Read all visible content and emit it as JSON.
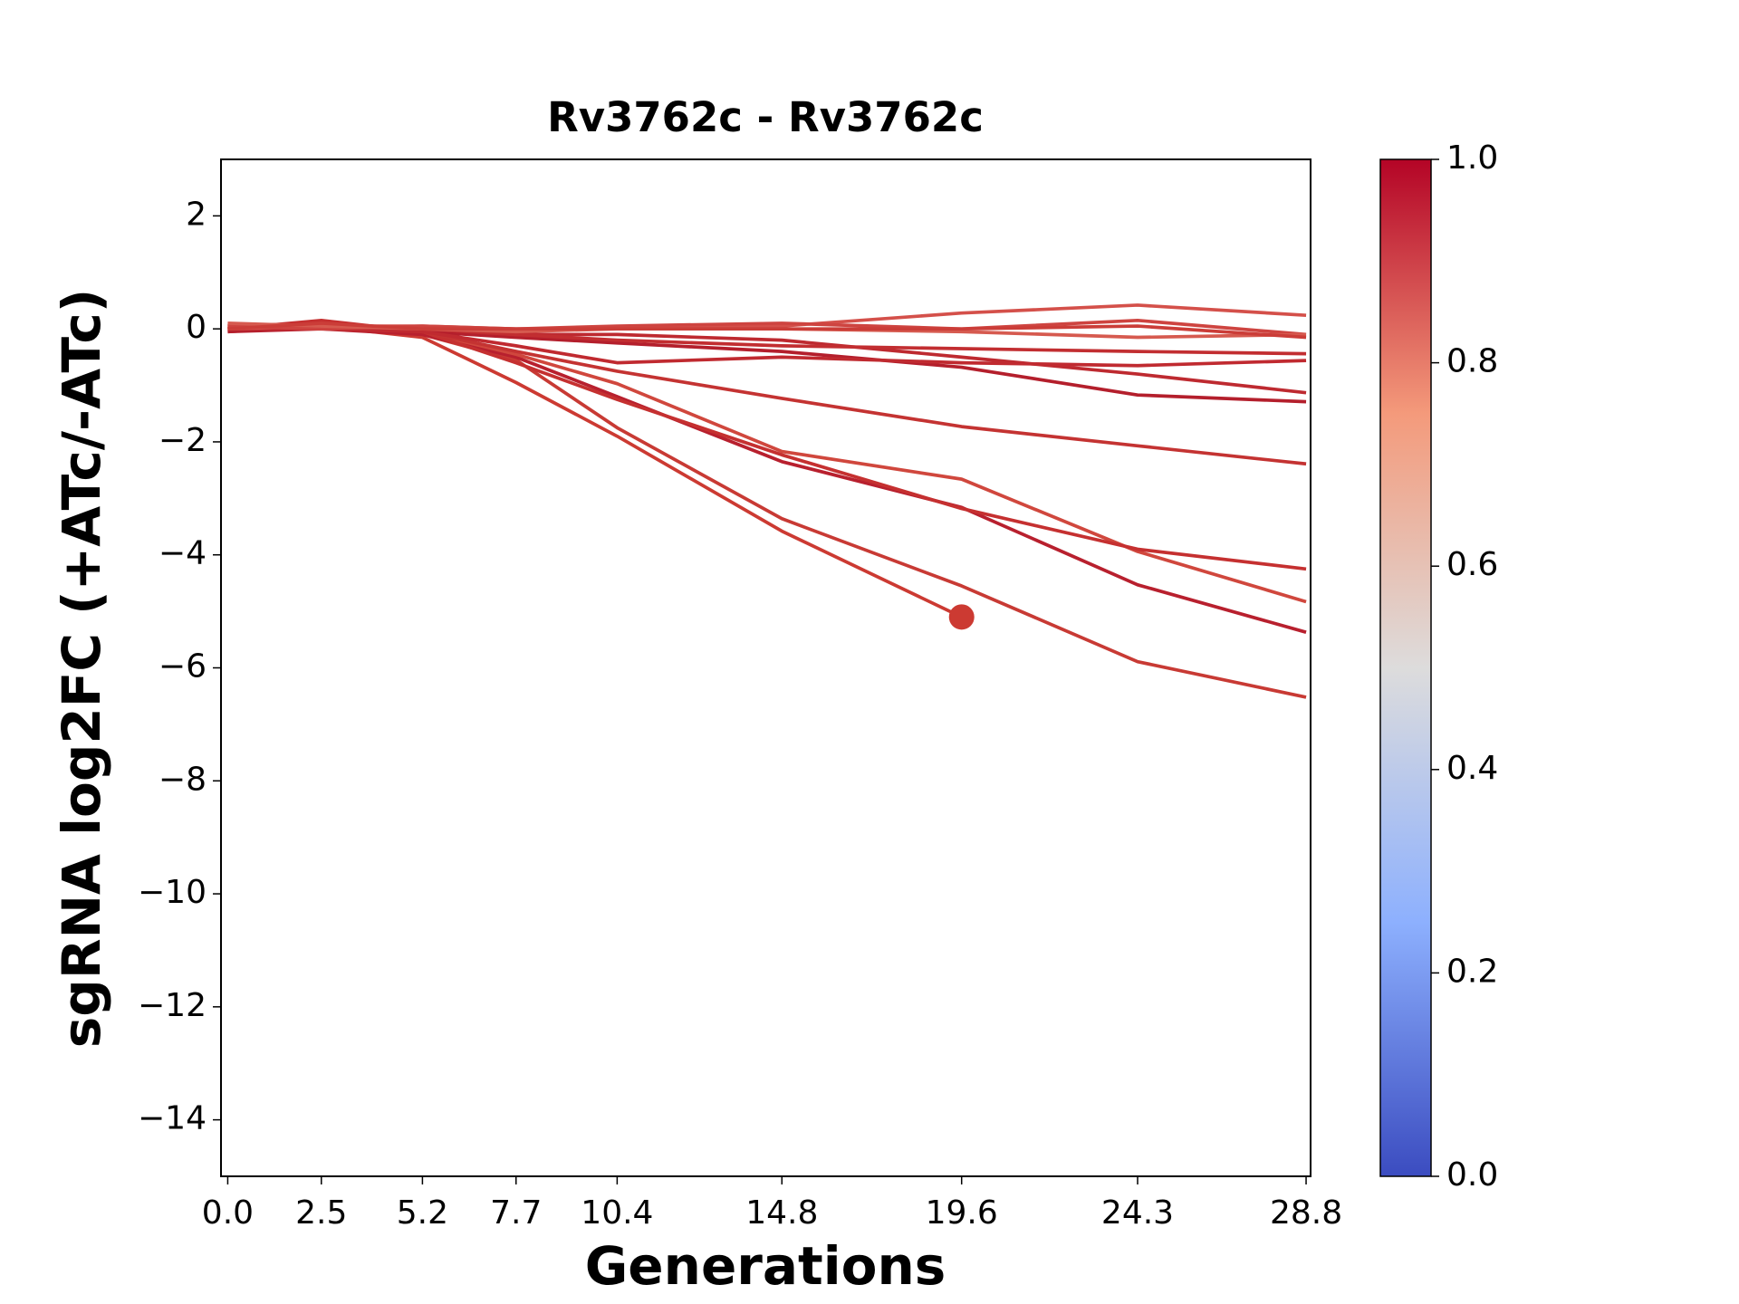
{
  "chart_data": {
    "type": "line",
    "title": "Rv3762c - Rv3762c",
    "xlabel": "Generations",
    "ylabel": "sgRNA log2FC (+ATc/-ATc)",
    "x": [
      0,
      2.5,
      5.2,
      7.7,
      10.4,
      14.8,
      19.6,
      24.3,
      28.8
    ],
    "xlim": [
      -0.18,
      28.92
    ],
    "xticks": [
      {
        "value": 0,
        "label": "0.0"
      },
      2.5,
      5.2,
      7.7,
      10.4,
      14.8,
      19.6,
      24.3,
      28.8
    ],
    "ylim": [
      -15,
      3
    ],
    "yticks": [
      {
        "value": -14,
        "label": "−14"
      },
      {
        "value": -12,
        "label": "−12"
      },
      {
        "value": -10,
        "label": "−10"
      },
      {
        "value": -8,
        "label": "−8"
      },
      {
        "value": -6,
        "label": "−6"
      },
      {
        "value": -4,
        "label": "−4"
      },
      {
        "value": -2,
        "label": "−2"
      },
      0,
      2
    ],
    "grid": false,
    "series": [
      {
        "color": "#c83a34",
        "values": [
          0.05,
          0.1,
          -0.1,
          -0.55,
          -1.75,
          -3.36,
          -4.55,
          -5.89,
          -6.52
        ]
      },
      {
        "color": "#cc3a32",
        "values": [
          0.0,
          0.05,
          -0.15,
          -0.95,
          -1.9,
          -3.58,
          -5.1,
          null,
          null
        ]
      },
      {
        "color": "#b8202e",
        "values": [
          -0.05,
          0.0,
          -0.1,
          -0.5,
          -1.2,
          -2.35,
          -3.16,
          -4.53,
          -5.37
        ]
      },
      {
        "color": "#d0473d",
        "values": [
          0.05,
          0.1,
          -0.05,
          -0.45,
          -0.97,
          -2.17,
          -2.66,
          -3.94,
          -4.83
        ]
      },
      {
        "color": "#c53030",
        "values": [
          0.0,
          0.15,
          -0.05,
          -0.6,
          -1.25,
          -2.23,
          -3.18,
          -3.9,
          -4.25
        ]
      },
      {
        "color": "#c43332",
        "values": [
          0.0,
          0.05,
          -0.05,
          -0.4,
          -0.75,
          -1.23,
          -1.73,
          -2.07,
          -2.39
        ]
      },
      {
        "color": "#b41f2c",
        "values": [
          -0.05,
          0.05,
          -0.05,
          -0.15,
          -0.25,
          -0.4,
          -0.68,
          -1.17,
          -1.29
        ]
      },
      {
        "color": "#be2a30",
        "values": [
          0.0,
          0.05,
          0.0,
          -0.1,
          -0.1,
          -0.2,
          -0.5,
          -0.8,
          -1.13
        ]
      },
      {
        "color": "#c02a30",
        "values": [
          0.0,
          0.0,
          -0.05,
          -0.3,
          -0.6,
          -0.5,
          -0.6,
          -0.65,
          -0.56
        ]
      },
      {
        "color": "#c22e31",
        "values": [
          0.05,
          0.05,
          0.0,
          -0.1,
          -0.2,
          -0.3,
          -0.35,
          -0.4,
          -0.44
        ]
      },
      {
        "color": "#d4504a",
        "values": [
          0.0,
          0.05,
          0.05,
          0.0,
          0.0,
          0.05,
          0.28,
          0.42,
          0.24
        ]
      },
      {
        "color": "#ce4440",
        "values": [
          0.05,
          0.0,
          0.05,
          0.0,
          0.05,
          0.1,
          0.0,
          0.15,
          -0.1
        ]
      },
      {
        "color": "#d65a4f",
        "values": [
          0.1,
          0.05,
          0.0,
          -0.05,
          0.0,
          0.0,
          -0.05,
          -0.15,
          -0.1
        ]
      },
      {
        "color": "#cb3d38",
        "values": [
          0.0,
          0.1,
          0.0,
          0.0,
          0.0,
          0.0,
          0.0,
          0.05,
          -0.15
        ]
      }
    ],
    "markers": [
      {
        "x": 19.6,
        "y": -5.1,
        "color": "#cc3a32"
      }
    ],
    "colorbar": {
      "lim": [
        0,
        1
      ],
      "ticks": [
        {
          "value": 0,
          "label": "0.0"
        },
        0.2,
        0.4,
        0.6,
        0.8,
        {
          "value": 1,
          "label": "1.0"
        }
      ]
    }
  }
}
